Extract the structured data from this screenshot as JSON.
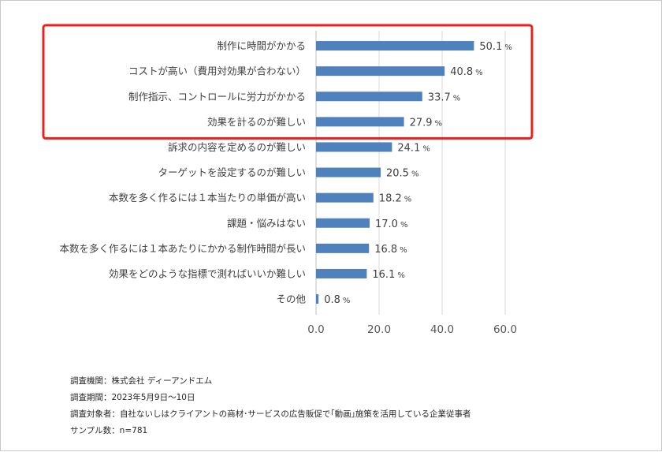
{
  "chart_data": {
    "type": "bar",
    "orientation": "horizontal",
    "categories": [
      "制作に時間がかかる",
      "コストが高い（費用対効果が合わない）",
      "制作指示、コントロールに労力がかかる",
      "効果を計るのが難しい",
      "訴求の内容を定めるのが難しい",
      "ターゲットを設定するのが難しい",
      "本数を多く作るには１本当たりの単価が高い",
      "課題・悩みはない",
      "本数を多く作るには１本あたりにかかる制作時間が長い",
      "効果をどのような指標で測ればいいか難しい",
      "その他"
    ],
    "values": [
      50.1,
      40.8,
      33.7,
      27.9,
      24.1,
      20.5,
      18.2,
      17.0,
      16.8,
      16.1,
      0.8
    ],
    "value_labels": [
      "50.1",
      "40.8",
      "33.7",
      "27.9",
      "24.1",
      "20.5",
      "18.2",
      "17.0",
      "16.8",
      "16.1",
      "0.8"
    ],
    "value_unit": "%",
    "xlim": [
      0,
      60
    ],
    "xticks": [
      "0.0",
      "20.0",
      "40.0",
      "60.0"
    ],
    "grid": true,
    "bar_color": "#4f81bd",
    "highlight": {
      "first_n": 4,
      "color": "#e8201f"
    }
  },
  "notes": [
    "調査機関：株式会社 ディーアンドエム",
    "調査期間：2023年5月9日～10日",
    "調査対象者：自社ないしはクライアントの商材･サービスの広告販促で｢動画｣施策を活用している企業従事者",
    "サンプル数：n=781"
  ]
}
